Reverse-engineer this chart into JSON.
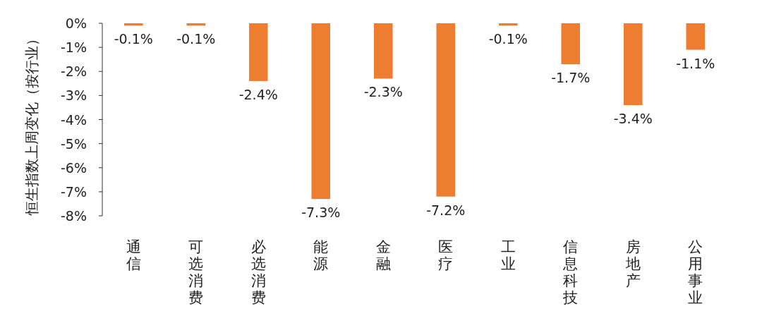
{
  "chart_data": {
    "type": "bar",
    "ylabel": "恒生指数上周变化（按行业）",
    "categories": [
      "通信",
      "可选消费",
      "必选消费",
      "能源",
      "金融",
      "医疗",
      "工业",
      "信息科技",
      "房地产",
      "公用事业"
    ],
    "values": [
      -0.1,
      -0.1,
      -2.4,
      -7.3,
      -2.3,
      -7.2,
      -0.1,
      -1.7,
      -3.4,
      -1.1
    ],
    "value_labels": [
      "-0.1%",
      "-0.1%",
      "-2.4%",
      "-7.3%",
      "-2.3%",
      "-7.2%",
      "-0.1%",
      "-1.7%",
      "-3.4%",
      "-1.1%"
    ],
    "color": "#ed7d31",
    "ylim": [
      -8,
      0
    ],
    "yticks": [
      {
        "value": 0,
        "label": "0%"
      },
      {
        "value": -1,
        "label": "-1%"
      },
      {
        "value": -2,
        "label": "-2%"
      },
      {
        "value": -3,
        "label": "-3%"
      },
      {
        "value": -4,
        "label": "-4%"
      },
      {
        "value": -5,
        "label": "-5%"
      },
      {
        "value": -6,
        "label": "-6%"
      },
      {
        "value": -7,
        "label": "-7%"
      },
      {
        "value": -8,
        "label": "-8%"
      }
    ],
    "grid": false
  }
}
